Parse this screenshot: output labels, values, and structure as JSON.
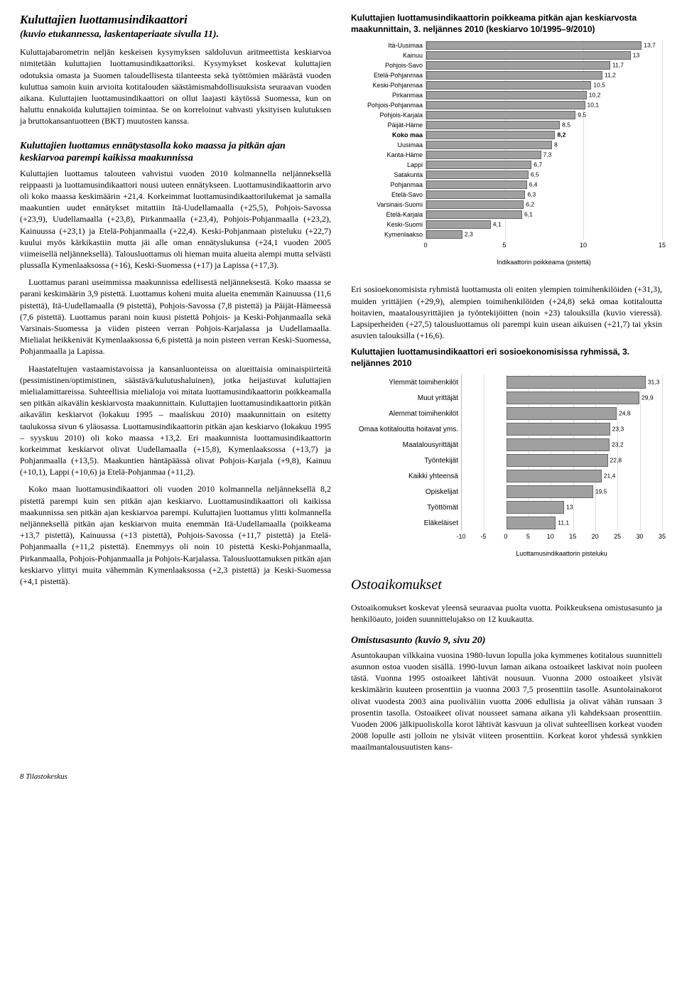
{
  "left": {
    "title": "Kuluttajien luottamusindikaattori",
    "subtitle": "(kuvio etukannessa, laskentaperiaate sivulla 11).",
    "p1": "Kuluttajabarometrin neljän keskeisen kysymyksen saldoluvun aritmeettista keskiarvoa nimitetään kuluttajien luottamusindikaattoriksi. Kysymykset koskevat kuluttajien odotuksia omasta ja Suomen taloudellisesta tilanteesta sekä työttömien määrästä vuoden kuluttua samoin kuin arvioita kotitalouden säästämismahdollisuuksista seuraavan vuoden aikana. Kuluttajien luottamusindikaattori on ollut laajasti käytössä Suomessa, kun on haluttu ennakoida kuluttajien toimintaa. Se on korreloinut vahvasti yksityisen kulutuksen ja bruttokansantuotteen (BKT) muutosten kanssa.",
    "block1_title": "Kuluttajien luottamus ennätystasolla koko maassa ja pitkän ajan keskiarvoa parempi kaikissa maakunnissa",
    "p2": "Kuluttajien luottamus talouteen vahvistui vuoden 2010 kolmannella neljänneksellä reippaasti ja luottamusindikaattori nousi uuteen ennätykseen. Luottamusindikaattorin arvo oli koko maassa keskimäärin +21,4. Korkeimmat luottamusindikaattorilukemat ja samalla maakuntien uudet ennätykset mitattiin Itä-Uudellamaalla (+25,5), Pohjois-Savossa (+23,9), Uudellamaalla (+23,8), Pirkanmaalla (+23,4), Pohjois-Pohjanmaalla (+23,2), Kainuussa (+23,1) ja Etelä-Pohjanmaalla (+22,4). Keski-Pohjanmaan pisteluku (+22,7) kuului myös kärkikastiin mutta jäi alle oman ennätyslukunsa (+24,1 vuoden 2005 viimeisellä neljänneksellä). Talousluottamus oli hieman muita alueita alempi mutta selvästi plussalla Kymenlaaksossa (+16), Keski-Suomessa (+17) ja Lapissa (+17,3).",
    "p3": "Luottamus parani useimmissa maakunnissa edellisestä neljänneksestä. Koko maassa se parani keskimäärin 3,9 pistettä. Luottamus koheni muita alueita enemmän Kainuussa (11,6 pistettä), Itä-Uudellamaalla (9 pistettä), Pohjois-Savossa (7,8 pistettä) ja Päijät-Hämeessä (7,6 pistettä). Luottamus parani noin kuusi pistettä Pohjois- ja Keski-Pohjanmaalla sekä Varsinais-Suomessa ja viiden pisteen verran Pohjois-Karjalassa ja Uudellamaalla. Mielialat heikkenivät Kymenlaaksossa 6,6 pistettä ja noin pisteen verran Keski-Suomessa, Pohjanmaalla ja Lapissa.",
    "p4": "Haastateltujen vastaamistavoissa ja kansanluonteissa on alueittaisia ominaispiirteitä (pessimistinen/optimistinen, säästävä/kulutushaluinen), jotka heijastuvat kuluttajien mielialamittareissa. Suhteellisia mielialoja voi mitata luottamusindikaattorin poikkeamalla sen pitkän aikavälin keskiarvosta maakunnittain. Kuluttajien luottamusindikaattorin pitkän aikavälin keskiarvot (lokakuu 1995 – maaliskuu 2010) maakunnittain on esitetty taulukossa sivun 6 yläosassa. Luottamusindikaattorin pitkän ajan keskiarvo (lokakuu 1995 – syyskuu 2010) oli koko maassa +13,2. Eri maakunnista luottamusindikaattorin korkeimmat keskiarvot olivat Uudellamaalla (+15,8), Kymenlaaksossa (+13,7) ja Pohjanmaalla (+13,5). Maakuntien häntäpäässä olivat Pohjois-Karjala (+9,8), Kainuu (+10,1), Lappi (+10,6) ja Etelä-Pohjanmaa (+11,2).",
    "p5": "Koko maan luottamusindikaattori oli vuoden 2010 kolmannella neljänneksellä 8,2 pistettä parempi kuin sen pitkän ajan keskiarvo. Luottamusindikaattori oli kaikissa maakunnissa sen pitkän ajan keskiarvoa parempi. Kuluttajien luottamus ylitti kolmannella neljänneksellä pitkän ajan keskiarvon muita enemmän Itä-Uudellamaalla (poikkeama +13,7 pistettä), Kainuussa (+13 pistettä), Pohjois-Savossa (+11,7 pistettä) ja Etelä-Pohjanmaalla (+11,2 pistettä). Enemmyys oli noin 10 pistettä Keski-Pohjanmaalla, Pirkanmaalla, Pohjois-Pohjanmaalla ja Pohjois-Karjalassa. Talousluottamuksen pitkän ajan keskiarvo ylittyi muita vähemmän Kymenlaaksossa (+2,3 pistettä) ja Keski-Suomessa (+4,1 pistettä)."
  },
  "right": {
    "chart1": {
      "title": "Kuluttajien luottamusindikaattorin poikkeama pitkän ajan keskiarvosta maakunnittain, 3. neljännes 2010 (keskiarvo 10/1995–9/2010)",
      "type": "bar-horizontal",
      "rows": [
        {
          "label": "Itä-Uusimaa",
          "value": 13.7,
          "bold": false
        },
        {
          "label": "Kainuu",
          "value": 13,
          "bold": false
        },
        {
          "label": "Pohjois-Savo",
          "value": 11.7,
          "bold": false
        },
        {
          "label": "Etelä-Pohjanmaa",
          "value": 11.2,
          "bold": false
        },
        {
          "label": "Keski-Pohjanmaa",
          "value": 10.5,
          "bold": false
        },
        {
          "label": "Pirkanmaa",
          "value": 10.2,
          "bold": false
        },
        {
          "label": "Pohjois-Pohjanmaa",
          "value": 10.1,
          "bold": false
        },
        {
          "label": "Pohjois-Karjala",
          "value": 9.5,
          "bold": false
        },
        {
          "label": "Päijät-Häme",
          "value": 8.5,
          "bold": false
        },
        {
          "label": "Koko maa",
          "value": 8.2,
          "bold": true
        },
        {
          "label": "Uusimaa",
          "value": 8,
          "bold": false
        },
        {
          "label": "Kanta-Häme",
          "value": 7.3,
          "bold": false
        },
        {
          "label": "Lappi",
          "value": 6.7,
          "bold": false
        },
        {
          "label": "Satakunta",
          "value": 6.5,
          "bold": false
        },
        {
          "label": "Pohjanmaa",
          "value": 6.4,
          "bold": false
        },
        {
          "label": "Etelä-Savo",
          "value": 6.3,
          "bold": false
        },
        {
          "label": "Varsinais-Suomi",
          "value": 6.2,
          "bold": false
        },
        {
          "label": "Etelä-Karjala",
          "value": 6.1,
          "bold": false
        },
        {
          "label": "Keski-Suomi",
          "value": 4.1,
          "bold": false
        },
        {
          "label": "Kymenlaakso",
          "value": 2.3,
          "bold": false
        }
      ],
      "xmin": 0,
      "xmax": 15,
      "xticks": [
        0,
        5,
        10,
        15
      ],
      "xlabel": "Indikaattorin poikkeama (pistettä)",
      "bar_color": "#a0a0a0",
      "border_color": "#666666",
      "grid_color": "#dddddd",
      "label_width": 105
    },
    "p6": "Eri sosioekonomisista ryhmistä luottamusta oli eniten ylempien toimihenkilöiden (+31,3), muiden yrittäjien (+29,9), alempien toimihenkilöiden (+24,8) sekä omaa kotitaloutta hoitavien, maatalousyrittäjien ja työntekijöitten (noin +23) talouksilla (kuvio vieressä). Lapsiperheiden (+27,5) talousluottamus oli parempi kuin usean aikuisen (+21,7) tai yksin asuvien talouksilla (+16,6).",
    "chart2": {
      "title": "Kuluttajien luottamusindikaattori eri sosioekonomisissa ryhmissä, 3. neljännes 2010",
      "type": "bar-horizontal",
      "rows": [
        {
          "label": "Ylemmät toimihenkilöt",
          "value": 31.3
        },
        {
          "label": "Muut yrittäjät",
          "value": 29.9
        },
        {
          "label": "Alemmat toimihenkilöt",
          "value": 24.8
        },
        {
          "label": "Omaa kotitaloutta hoitavat yms.",
          "value": 23.3
        },
        {
          "label": "Maatalousyrittäjät",
          "value": 23.2
        },
        {
          "label": "Työntekijät",
          "value": 22.8
        },
        {
          "label": "Kaikki yhteensä",
          "value": 21.4
        },
        {
          "label": "Opiskelijat",
          "value": 19.5
        },
        {
          "label": "Työttömät",
          "value": 13
        },
        {
          "label": "Eläkeläiset",
          "value": 11.1
        }
      ],
      "xmin": -10,
      "xmax": 35,
      "xticks": [
        -10,
        -5,
        0,
        5,
        10,
        15,
        20,
        25,
        30,
        35
      ],
      "xlabel": "Luottamusindikaattorin pisteluku",
      "bar_color": "#a0a0a0",
      "border_color": "#666666",
      "grid_color": "#dddddd",
      "label_width": 155
    },
    "h2": "Ostoaikomukset",
    "p7": "Ostoaikomukset koskevat yleensä seuraavaa puolta vuotta. Poikkeuksena omistusasunto ja henkilöauto, joiden suunnittelujakso on 12 kuukautta.",
    "subh": "Omistusasunto (kuvio 9, sivu 20)",
    "p8": "Asuntokaupan vilkkaina vuosina 1980-luvun lopulla joka kymmenes kotitalous suunnitteli asunnon ostoa vuoden sisällä. 1990-luvun laman aikana ostoaikeet laskivat noin puoleen tästä. Vuonna 1995 ostoaikeet lähtivät nousuun. Vuonna 2000 ostoaikeet ylsivät keskimäärin kuuteen prosenttiin ja vuonna 2003 7,5 prosenttiin tasolle. Asuntolainakorot olivat vuodesta 2003 aina puoliväliin vuotta 2006 edullisia ja olivat vähän runsaan 3 prosentin tasolla. Ostoaikeet olivat nousseet samana aikana yli kahdeksaan prosenttiin. Vuoden 2006 jälkipuoliskolla korot lähtivät kasvuun ja olivat suhteellisen korkeat vuoden 2008 lopulle asti jolloin ne ylsivät viiteen prosenttiin. Korkeat korot yhdessä synkkien maailmantalousuutisten kans-"
  },
  "footer": "8   Tilastokeskus"
}
